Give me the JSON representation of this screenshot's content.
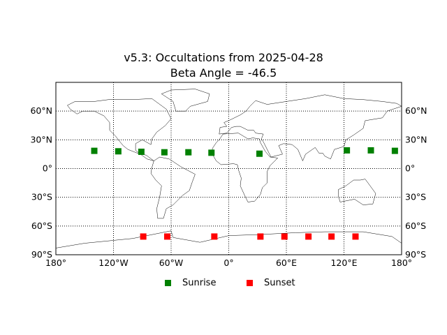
{
  "title_line1": "v5.3: Occultations from 2025-04-28",
  "title_line2": "Beta Angle = -46.5",
  "lat_ticks": [
    "60°N",
    "30°N",
    "0°",
    "30°S",
    "60°S",
    "90°S"
  ],
  "lon_ticks": [
    "180°",
    "120°W",
    "60°W",
    "0°",
    "60°E",
    "120°E",
    "180°"
  ],
  "legend": [
    {
      "label": "Sunrise",
      "color": "#008000"
    },
    {
      "label": "Sunset",
      "color": "#ff0000"
    }
  ],
  "chart_data": {
    "type": "scatter",
    "projection": "equirectangular",
    "x_range": [
      -180,
      180
    ],
    "y_range": [
      -90,
      90
    ],
    "grid": true,
    "legend_placement": "bottom-center",
    "series": [
      {
        "name": "Sunrise",
        "color": "#008000",
        "marker": "square",
        "points": [
          {
            "lon": -140,
            "lat": 18.5
          },
          {
            "lon": -115,
            "lat": 18
          },
          {
            "lon": -91,
            "lat": 17.5
          },
          {
            "lon": -67,
            "lat": 17
          },
          {
            "lon": -42,
            "lat": 17
          },
          {
            "lon": -18,
            "lat": 16.5
          },
          {
            "lon": 32,
            "lat": 15.5
          },
          {
            "lon": 123,
            "lat": 19
          },
          {
            "lon": 148,
            "lat": 19
          },
          {
            "lon": 173,
            "lat": 18.5
          }
        ]
      },
      {
        "name": "Sunset",
        "color": "#ff0000",
        "marker": "square",
        "points": [
          {
            "lon": -89,
            "lat": -71
          },
          {
            "lon": -64,
            "lat": -71
          },
          {
            "lon": -15,
            "lat": -71
          },
          {
            "lon": 33,
            "lat": -71
          },
          {
            "lon": 58,
            "lat": -71
          },
          {
            "lon": 83,
            "lat": -71
          },
          {
            "lon": 107,
            "lat": -71
          },
          {
            "lon": 132,
            "lat": -71
          }
        ]
      }
    ]
  }
}
